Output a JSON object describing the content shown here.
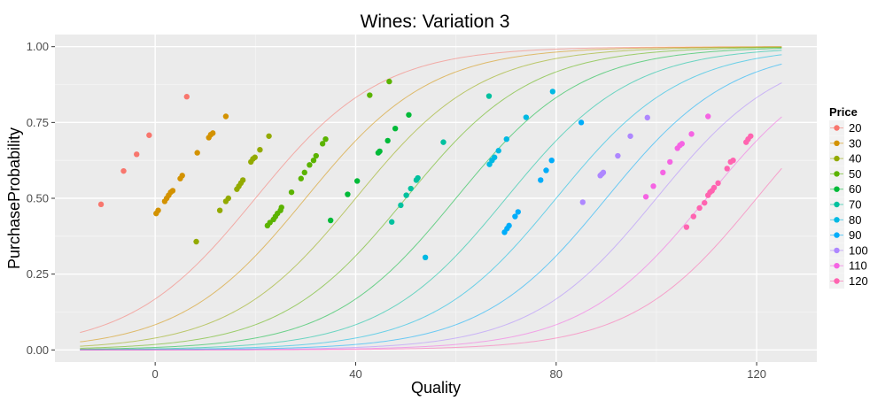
{
  "chart_data": {
    "type": "scatter",
    "title": "Wines: Variation 3",
    "xlabel": "Quality",
    "ylabel": "PurchaseProbability",
    "xlim": [
      -20,
      132
    ],
    "ylim": [
      -0.04,
      1.04
    ],
    "x_ticks": [
      0,
      40,
      80,
      120
    ],
    "y_ticks": [
      0.0,
      0.25,
      0.5,
      0.75,
      1.0
    ],
    "x_tick_labels": [
      "0",
      "40",
      "80",
      "120"
    ],
    "y_tick_labels": [
      "0.00",
      "0.25",
      "0.50",
      "0.75",
      "1.00"
    ],
    "grid": true,
    "legend": {
      "title": "Price",
      "position": "right"
    },
    "curve_x_range": [
      -15,
      125
    ],
    "curve_model": {
      "slope": 0.08,
      "price_coefficient": 0.8,
      "intercept": 16
    },
    "series": [
      {
        "name": "20",
        "color": "#F8766D",
        "points": [
          [
            -10.8,
            0.48
          ],
          [
            -6.3,
            0.59
          ],
          [
            -3.7,
            0.645
          ],
          [
            -1.2,
            0.708
          ],
          [
            6.3,
            0.835
          ]
        ]
      },
      {
        "name": "30",
        "color": "#D39200",
        "points": [
          [
            0.2,
            0.45
          ],
          [
            0.6,
            0.46
          ],
          [
            1.9,
            0.49
          ],
          [
            2.3,
            0.5
          ],
          [
            2.7,
            0.51
          ],
          [
            3.1,
            0.52
          ],
          [
            3.5,
            0.525
          ],
          [
            5.0,
            0.565
          ],
          [
            5.4,
            0.575
          ],
          [
            8.4,
            0.65
          ],
          [
            10.7,
            0.7
          ],
          [
            11.1,
            0.71
          ],
          [
            11.5,
            0.715
          ],
          [
            14.1,
            0.77
          ]
        ]
      },
      {
        "name": "40",
        "color": "#93AA00",
        "points": [
          [
            8.2,
            0.357
          ],
          [
            12.9,
            0.46
          ],
          [
            14.1,
            0.49
          ],
          [
            14.6,
            0.5
          ],
          [
            16.3,
            0.53
          ],
          [
            16.7,
            0.54
          ],
          [
            17.1,
            0.55
          ],
          [
            17.5,
            0.56
          ],
          [
            19.1,
            0.62
          ],
          [
            19.5,
            0.63
          ],
          [
            19.9,
            0.635
          ],
          [
            20.9,
            0.66
          ],
          [
            22.7,
            0.705
          ]
        ]
      },
      {
        "name": "50",
        "color": "#5BB300",
        "points": [
          [
            22.4,
            0.41
          ],
          [
            22.9,
            0.42
          ],
          [
            23.6,
            0.43
          ],
          [
            24.0,
            0.44
          ],
          [
            24.4,
            0.45
          ],
          [
            25.0,
            0.46
          ],
          [
            25.2,
            0.47
          ],
          [
            27.2,
            0.52
          ],
          [
            29.1,
            0.565
          ],
          [
            29.8,
            0.585
          ],
          [
            30.8,
            0.61
          ],
          [
            31.6,
            0.625
          ],
          [
            32.1,
            0.64
          ],
          [
            33.4,
            0.68
          ],
          [
            34.0,
            0.695
          ],
          [
            42.8,
            0.84
          ],
          [
            46.7,
            0.885
          ]
        ]
      },
      {
        "name": "60",
        "color": "#00BA38",
        "points": [
          [
            35.0,
            0.427
          ],
          [
            38.4,
            0.513
          ],
          [
            40.3,
            0.557
          ],
          [
            44.5,
            0.65
          ],
          [
            44.8,
            0.655
          ],
          [
            46.4,
            0.69
          ],
          [
            47.9,
            0.73
          ],
          [
            50.6,
            0.775
          ]
        ]
      },
      {
        "name": "70",
        "color": "#00C19F",
        "points": [
          [
            47.2,
            0.422
          ],
          [
            49.0,
            0.477
          ],
          [
            50.1,
            0.51
          ],
          [
            51.0,
            0.532
          ],
          [
            52.1,
            0.56
          ],
          [
            52.4,
            0.567
          ],
          [
            57.5,
            0.685
          ],
          [
            66.6,
            0.837
          ]
        ]
      },
      {
        "name": "80",
        "color": "#00B9E3",
        "points": [
          [
            53.9,
            0.305
          ],
          [
            66.7,
            0.612
          ],
          [
            67.2,
            0.625
          ],
          [
            67.7,
            0.635
          ],
          [
            68.5,
            0.657
          ],
          [
            70.1,
            0.695
          ],
          [
            74.0,
            0.767
          ],
          [
            79.3,
            0.852
          ]
        ]
      },
      {
        "name": "90",
        "color": "#00ADFA",
        "points": [
          [
            69.7,
            0.388
          ],
          [
            70.2,
            0.4
          ],
          [
            70.6,
            0.41
          ],
          [
            71.8,
            0.44
          ],
          [
            72.4,
            0.455
          ],
          [
            76.9,
            0.56
          ],
          [
            78.0,
            0.592
          ],
          [
            79.1,
            0.625
          ],
          [
            85.0,
            0.75
          ]
        ]
      },
      {
        "name": "100",
        "color": "#AE87FF",
        "points": [
          [
            85.3,
            0.487
          ],
          [
            88.8,
            0.575
          ],
          [
            89.1,
            0.58
          ],
          [
            89.4,
            0.585
          ],
          [
            92.3,
            0.64
          ],
          [
            94.8,
            0.705
          ],
          [
            98.2,
            0.766
          ]
        ]
      },
      {
        "name": "110",
        "color": "#F564E3",
        "points": [
          [
            97.9,
            0.505
          ],
          [
            99.4,
            0.54
          ],
          [
            101.3,
            0.585
          ],
          [
            102.7,
            0.62
          ],
          [
            104.2,
            0.665
          ],
          [
            104.7,
            0.675
          ],
          [
            105.1,
            0.68
          ],
          [
            107.0,
            0.712
          ],
          [
            110.3,
            0.77
          ]
        ]
      },
      {
        "name": "120",
        "color": "#FF64B0",
        "points": [
          [
            106.0,
            0.405
          ],
          [
            107.4,
            0.44
          ],
          [
            108.6,
            0.468
          ],
          [
            109.6,
            0.485
          ],
          [
            110.3,
            0.51
          ],
          [
            110.7,
            0.52
          ],
          [
            111.1,
            0.525
          ],
          [
            111.5,
            0.535
          ],
          [
            112.3,
            0.55
          ],
          [
            114.1,
            0.598
          ],
          [
            114.8,
            0.62
          ],
          [
            115.3,
            0.625
          ],
          [
            117.9,
            0.685
          ],
          [
            118.3,
            0.695
          ],
          [
            118.8,
            0.705
          ]
        ]
      }
    ]
  }
}
